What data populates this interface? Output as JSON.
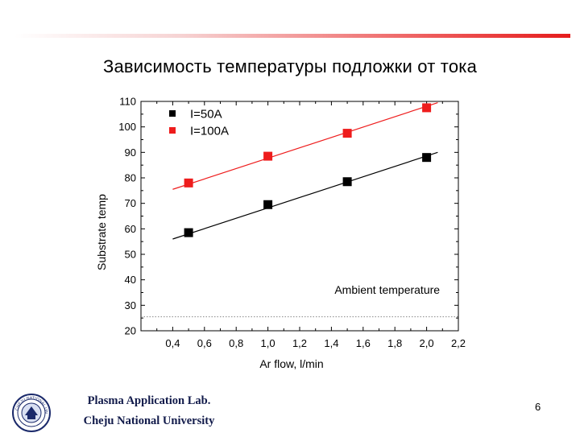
{
  "slide": {
    "title": "Зависимость температуры подложки от тока",
    "page_number": "6"
  },
  "footer": {
    "line1": "Plasma Application Lab.",
    "line2": "Cheju National University"
  },
  "seal": {
    "ring_text": "CHEJU NATIONAL UNIVERSITY"
  },
  "colors": {
    "accent_bar": "#e51c1c",
    "series_black": "#000000",
    "series_red": "#ee1c1c",
    "footer_text": "#111a4a"
  },
  "chart_data": {
    "type": "scatter",
    "xlabel": "Ar flow, l/min",
    "ylabel": "Substrate temp",
    "xlim": [
      0.2,
      2.2
    ],
    "ylim": [
      20,
      110
    ],
    "xticks": [
      0.4,
      0.6,
      0.8,
      1.0,
      1.2,
      1.4,
      1.6,
      1.8,
      2.0,
      2.2
    ],
    "xtick_labels": [
      "0,4",
      "0,6",
      "0,8",
      "1,0",
      "1,2",
      "1,4",
      "1,6",
      "1,8",
      "2,0",
      "2,2"
    ],
    "yticks": [
      20,
      30,
      40,
      50,
      60,
      70,
      80,
      90,
      100,
      110
    ],
    "ytick_labels": [
      "20",
      "30",
      "40",
      "50",
      "60",
      "70",
      "80",
      "90",
      "100",
      "110"
    ],
    "legend_position": "top-left",
    "series": [
      {
        "name": "I=50A",
        "color": "#000000",
        "x": [
          0.5,
          1.0,
          1.5,
          2.0
        ],
        "y": [
          58.5,
          69.5,
          78.5,
          88
        ],
        "fit": {
          "x": [
            0.4,
            2.07
          ],
          "y": [
            56,
            90
          ]
        }
      },
      {
        "name": "I=100A",
        "color": "#ee1c1c",
        "x": [
          0.5,
          1.0,
          1.5,
          2.0
        ],
        "y": [
          78,
          88.5,
          97.5,
          107.5
        ],
        "fit": {
          "x": [
            0.4,
            2.07
          ],
          "y": [
            75.5,
            109.5
          ]
        }
      }
    ],
    "reference_line": {
      "y": 25.5,
      "style": "dotted"
    },
    "annotations": [
      {
        "text": "Ambient temperature",
        "x": 1.42,
        "y": 34.5
      }
    ],
    "grid": false
  }
}
